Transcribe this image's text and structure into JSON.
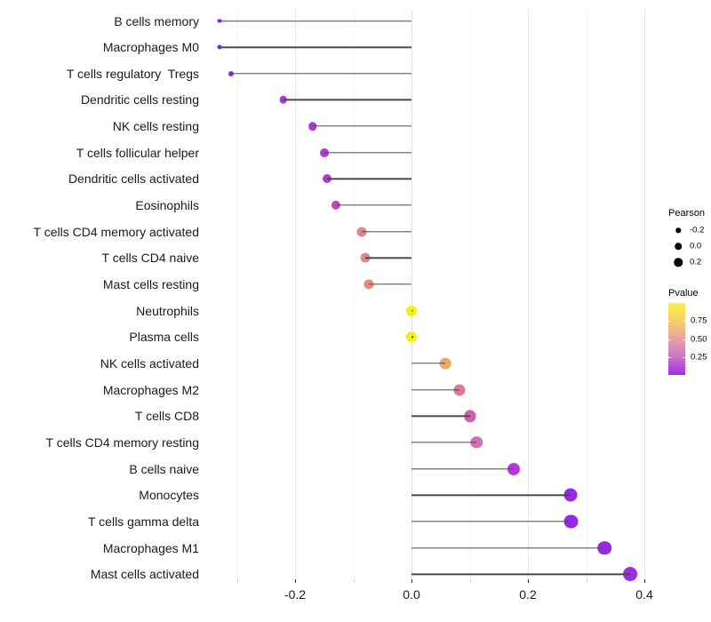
{
  "figure": {
    "background": "#ffffff"
  },
  "chart_data": {
    "type": "scatter",
    "subtype": "lollipop",
    "orientation": "horizontal",
    "title": "",
    "xlabel": "",
    "ylabel": "",
    "grid": "on",
    "x_axis": {
      "tick_labels": [
        "-0.2",
        "0.0",
        "0.2",
        "0.4"
      ],
      "tick_values": [
        -0.2,
        0.0,
        0.2,
        0.4
      ],
      "minor_tick_values": [
        -0.3,
        -0.1,
        0.1,
        0.3
      ],
      "range": [
        -0.36,
        0.43
      ]
    },
    "points": [
      {
        "label": "B cells memory",
        "pearson": -0.33,
        "color": "#8926DE"
      },
      {
        "label": "Macrophages M0",
        "pearson": -0.33,
        "color": "#8926DE"
      },
      {
        "label": "T cells regulatory  Tregs",
        "pearson": -0.31,
        "color": "#9129E0"
      },
      {
        "label": "Dendritic cells resting",
        "pearson": -0.22,
        "color": "#A338D8"
      },
      {
        "label": "NK cells resting",
        "pearson": -0.17,
        "color": "#A93AD5"
      },
      {
        "label": "T cells follicular helper",
        "pearson": -0.15,
        "color": "#AE3CD1"
      },
      {
        "label": "Dendritic cells activated",
        "pearson": -0.145,
        "color": "#AC3AD3"
      },
      {
        "label": "Eosinophils",
        "pearson": -0.13,
        "color": "#BC4AC5"
      },
      {
        "label": "T cells CD4 memory activated",
        "pearson": -0.085,
        "color": "#D8868F"
      },
      {
        "label": "T cells CD4 naive",
        "pearson": -0.08,
        "color": "#DA8A91"
      },
      {
        "label": "Mast cells resting",
        "pearson": -0.073,
        "color": "#E28D86"
      },
      {
        "label": "Neutrophils",
        "pearson": 0.0,
        "color": "#F4F108"
      },
      {
        "label": "Plasma cells",
        "pearson": 0.0,
        "color": "#F4F108"
      },
      {
        "label": "NK cells activated",
        "pearson": 0.058,
        "color": "#F0A862"
      },
      {
        "label": "Macrophages M2",
        "pearson": 0.083,
        "color": "#DC7A96"
      },
      {
        "label": "T cells CD8",
        "pearson": 0.1,
        "color": "#CE5FAD"
      },
      {
        "label": "T cells CD4 memory resting",
        "pearson": 0.112,
        "color": "#CF72B5"
      },
      {
        "label": "B cells naive",
        "pearson": 0.175,
        "color": "#B637DC"
      },
      {
        "label": "Monocytes",
        "pearson": 0.273,
        "color": "#9927E8"
      },
      {
        "label": "T cells gamma delta",
        "pearson": 0.274,
        "color": "#9927E8"
      },
      {
        "label": "Macrophages M1",
        "pearson": 0.332,
        "color": "#9A29E6"
      },
      {
        "label": "Mast cells activated",
        "pearson": 0.375,
        "color": "#A02BE5"
      }
    ],
    "legend": {
      "size_legend": {
        "title": "Pearson",
        "entries": [
          {
            "label": "-0.2",
            "diameter": 5.5
          },
          {
            "label": "0.0",
            "diameter": 7.5
          },
          {
            "label": "0.2",
            "diameter": 9.5
          }
        ]
      },
      "color_legend": {
        "title": "Pvalue",
        "tick_labels": [
          "0.75",
          "0.50",
          "0.25"
        ],
        "tick_values": [
          0.75,
          0.5,
          0.25
        ],
        "gradient_top_to_bottom": [
          "#F9F143",
          "#F6CE6D",
          "#E9A2A2",
          "#CC74C8",
          "#A42BE8"
        ]
      }
    },
    "style": {
      "stem_color": "#4a4a4a",
      "major_grid_color": "#e9e9e9",
      "minor_grid_color": "#f2f2f2",
      "axis_text_color": "#1a1a1a"
    }
  }
}
